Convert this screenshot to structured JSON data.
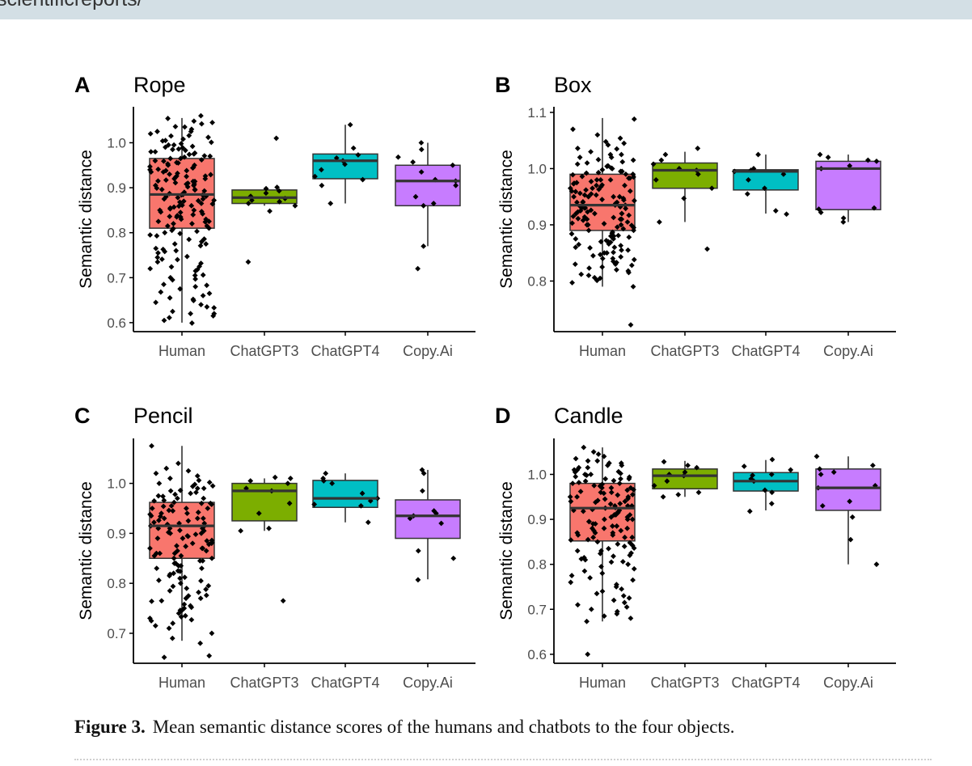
{
  "header": {
    "fragment": "scientificreports/"
  },
  "figure": {
    "caption_label": "Figure 3.",
    "caption_text": "Mean semantic distance scores of the humans and chatbots to the four objects."
  },
  "chart_data": [
    {
      "type": "boxplot",
      "panel_label": "A",
      "title": "Rope",
      "xlabel": "",
      "ylabel": "Semantic distance",
      "categories": [
        "Human",
        "ChatGPT3",
        "ChatGPT4",
        "Copy.Ai"
      ],
      "ylim": [
        0.58,
        1.08
      ],
      "yticks": [
        0.6,
        0.7,
        0.8,
        0.9,
        1.0
      ],
      "box_colors": [
        "#f8766d",
        "#7cae00",
        "#00bfc4",
        "#c77cff"
      ],
      "boxes": [
        {
          "whisker_low": 0.6,
          "q1": 0.81,
          "median": 0.885,
          "q3": 0.965,
          "whisker_high": 1.055,
          "points": [
            0.599,
            0.611,
            0.62,
            0.633,
            0.649,
            0.652,
            0.668,
            0.683,
            0.697,
            0.706,
            0.718,
            0.724,
            0.732,
            0.741,
            0.747,
            0.758,
            0.763,
            0.771,
            0.775,
            0.786,
            0.793,
            0.798,
            0.803,
            0.809,
            0.815,
            0.82,
            0.825,
            0.83,
            0.835,
            0.838,
            0.842,
            0.846,
            0.85,
            0.853,
            0.857,
            0.861,
            0.864,
            0.868,
            0.871,
            0.875,
            0.878,
            0.881,
            0.884,
            0.887,
            0.89,
            0.893,
            0.896,
            0.899,
            0.902,
            0.905,
            0.908,
            0.911,
            0.914,
            0.917,
            0.92,
            0.923,
            0.926,
            0.929,
            0.932,
            0.935,
            0.938,
            0.941,
            0.944,
            0.947,
            0.95,
            0.953,
            0.956,
            0.959,
            0.962,
            0.965,
            0.968,
            0.971,
            0.974,
            0.977,
            0.98,
            0.983,
            0.986,
            0.989,
            0.992,
            0.995,
            0.998,
            1.001,
            1.004,
            1.008,
            1.012,
            1.016,
            1.02,
            1.025,
            1.03,
            1.036,
            1.042,
            1.048,
            1.054,
            1.06,
            0.872,
            0.884,
            0.896,
            0.908,
            0.914,
            0.926,
            0.938,
            0.95,
            0.96,
            0.97,
            0.98,
            0.99,
            0.859,
            0.847,
            0.836,
            0.824,
            0.8,
            0.78,
            0.76,
            0.74,
            0.72,
            0.7,
            0.68,
            0.66,
            0.64,
            0.62,
            0.91,
            0.92,
            0.93,
            0.94,
            0.88,
            0.87,
            0.86,
            0.85,
            0.84,
            0.83,
            0.82,
            0.81,
            0.905,
            0.915,
            0.925,
            0.935,
            0.945,
            0.955,
            0.965,
            0.975,
            0.985,
            0.995,
            1.005,
            1.015,
            1.025,
            1.035,
            1.045,
            0.895,
            0.885,
            0.875,
            0.865,
            0.855,
            0.845,
            0.835,
            0.825,
            0.815,
            0.805,
            0.795,
            0.785,
            0.775,
            0.765,
            0.755,
            0.745,
            0.735,
            0.725,
            0.715,
            0.705,
            0.695,
            0.685,
            0.675,
            0.665,
            0.655,
            0.645,
            0.635,
            0.625,
            0.615,
            0.605
          ]
        },
        {
          "whisker_low": 0.86,
          "q1": 0.865,
          "median": 0.878,
          "q3": 0.895,
          "whisker_high": 0.9,
          "points": [
            0.735,
            0.848,
            0.86,
            0.865,
            0.869,
            0.872,
            0.876,
            0.881,
            0.888,
            0.893,
            0.898,
            0.901,
            1.01
          ]
        },
        {
          "whisker_low": 0.865,
          "q1": 0.92,
          "median": 0.96,
          "q3": 0.975,
          "whisker_high": 1.04,
          "points": [
            0.865,
            0.905,
            0.918,
            0.925,
            0.94,
            0.952,
            0.96,
            0.966,
            0.973,
            0.988,
            1.04
          ]
        },
        {
          "whisker_low": 0.77,
          "q1": 0.86,
          "median": 0.915,
          "q3": 0.95,
          "whisker_high": 1.0,
          "points": [
            0.72,
            0.77,
            0.86,
            0.865,
            0.88,
            0.905,
            0.915,
            0.918,
            0.935,
            0.95,
            0.957,
            0.968,
            0.985,
            1.0
          ]
        }
      ]
    },
    {
      "type": "boxplot",
      "panel_label": "B",
      "title": "Box",
      "xlabel": "",
      "ylabel": "Semantic distance",
      "categories": [
        "Human",
        "ChatGPT3",
        "ChatGPT4",
        "Copy.Ai"
      ],
      "ylim": [
        0.71,
        1.11
      ],
      "yticks": [
        0.8,
        0.9,
        1.0,
        1.1
      ],
      "box_colors": [
        "#f8766d",
        "#7cae00",
        "#00bfc4",
        "#c77cff"
      ],
      "boxes": [
        {
          "whisker_low": 0.79,
          "q1": 0.89,
          "median": 0.935,
          "q3": 0.99,
          "whisker_high": 1.09,
          "points": [
            0.722,
            0.79,
            0.797,
            0.801,
            0.806,
            0.812,
            0.818,
            0.823,
            0.828,
            0.833,
            0.838,
            0.843,
            0.847,
            0.851,
            0.855,
            0.859,
            0.863,
            0.866,
            0.869,
            0.872,
            0.875,
            0.878,
            0.881,
            0.884,
            0.887,
            0.89,
            0.893,
            0.896,
            0.899,
            0.902,
            0.905,
            0.908,
            0.911,
            0.914,
            0.917,
            0.92,
            0.923,
            0.926,
            0.929,
            0.932,
            0.935,
            0.938,
            0.941,
            0.944,
            0.947,
            0.95,
            0.953,
            0.956,
            0.959,
            0.962,
            0.965,
            0.968,
            0.971,
            0.974,
            0.977,
            0.98,
            0.983,
            0.986,
            0.989,
            0.992,
            0.995,
            0.998,
            1.001,
            1.004,
            1.008,
            1.012,
            1.016,
            1.02,
            1.025,
            1.03,
            1.036,
            1.042,
            1.048,
            1.054,
            1.06,
            1.07,
            1.088,
            0.91,
            0.92,
            0.93,
            0.94,
            0.95,
            0.96,
            0.97,
            0.98,
            0.99,
            0.88,
            0.87,
            0.86,
            0.85,
            0.84,
            0.83,
            0.82,
            0.81,
            0.9,
            0.915,
            0.925,
            0.935,
            0.945,
            0.955,
            0.965,
            0.975,
            0.985,
            0.995,
            1.005,
            1.015,
            1.025,
            1.035,
            1.045,
            0.895,
            0.885,
            0.875,
            0.865,
            0.855,
            0.845,
            0.835,
            0.825,
            0.815,
            0.805,
            0.903,
            0.913,
            0.923,
            0.933,
            0.943,
            0.953,
            0.963,
            0.973,
            0.983,
            0.993,
            0.88,
            0.89,
            0.9,
            0.91,
            0.92,
            0.93,
            0.94,
            0.95,
            0.96,
            0.97,
            0.98,
            0.99,
            1.0,
            1.01,
            1.02,
            0.86,
            0.87,
            0.85,
            0.84,
            0.83,
            0.9,
            0.91,
            0.92,
            0.93,
            0.94,
            0.95
          ]
        },
        {
          "whisker_low": 0.905,
          "q1": 0.965,
          "median": 0.997,
          "q3": 1.01,
          "whisker_high": 1.03,
          "points": [
            0.857,
            0.905,
            0.947,
            0.965,
            0.98,
            0.99,
            0.997,
            1.0,
            1.008,
            1.015,
            1.025,
            1.036
          ]
        },
        {
          "whisker_low": 0.92,
          "q1": 0.962,
          "median": 0.995,
          "q3": 0.998,
          "whisker_high": 1.025,
          "points": [
            0.919,
            0.925,
            0.955,
            0.965,
            0.98,
            0.99,
            0.995,
            0.997,
            1.0,
            1.025
          ]
        },
        {
          "whisker_low": 0.905,
          "q1": 0.927,
          "median": 1.0,
          "q3": 1.013,
          "whisker_high": 1.025,
          "points": [
            0.905,
            0.912,
            0.922,
            0.928,
            0.93,
            1.0,
            1.005,
            1.013,
            1.015,
            1.02,
            1.025
          ]
        }
      ]
    },
    {
      "type": "boxplot",
      "panel_label": "C",
      "title": "Pencil",
      "xlabel": "",
      "ylabel": "Semantic distance",
      "categories": [
        "Human",
        "ChatGPT3",
        "ChatGPT4",
        "Copy.Ai"
      ],
      "ylim": [
        0.64,
        1.09
      ],
      "yticks": [
        0.7,
        0.8,
        0.9,
        1.0
      ],
      "box_colors": [
        "#f8766d",
        "#7cae00",
        "#00bfc4",
        "#c77cff"
      ],
      "boxes": [
        {
          "whisker_low": 0.685,
          "q1": 0.85,
          "median": 0.915,
          "q3": 0.962,
          "whisker_high": 1.075,
          "points": [
            0.652,
            0.655,
            0.68,
            0.69,
            0.7,
            0.71,
            0.715,
            0.72,
            0.727,
            0.733,
            0.74,
            0.746,
            0.752,
            0.758,
            0.764,
            0.77,
            0.776,
            0.782,
            0.788,
            0.794,
            0.8,
            0.806,
            0.812,
            0.818,
            0.824,
            0.83,
            0.835,
            0.84,
            0.845,
            0.85,
            0.855,
            0.86,
            0.865,
            0.87,
            0.874,
            0.878,
            0.882,
            0.886,
            0.89,
            0.894,
            0.898,
            0.902,
            0.906,
            0.91,
            0.914,
            0.918,
            0.922,
            0.926,
            0.93,
            0.934,
            0.938,
            0.942,
            0.946,
            0.95,
            0.954,
            0.958,
            0.962,
            0.966,
            0.97,
            0.974,
            0.978,
            0.982,
            0.986,
            0.99,
            0.994,
            0.998,
            1.002,
            1.006,
            1.01,
            1.015,
            1.02,
            1.025,
            1.03,
            1.04,
            1.075,
            0.88,
            0.89,
            0.9,
            0.91,
            0.92,
            0.93,
            0.94,
            0.95,
            0.96,
            0.86,
            0.87,
            0.85,
            0.84,
            0.83,
            0.82,
            0.81,
            0.79,
            0.77,
            0.75,
            0.73,
            0.905,
            0.915,
            0.925,
            0.935,
            0.945,
            0.955,
            0.965,
            0.975,
            0.985,
            0.995,
            0.895,
            0.885,
            0.875,
            0.865,
            0.855,
            0.845,
            0.835,
            0.825,
            0.815,
            0.805,
            0.795,
            0.785,
            0.775,
            0.765,
            0.755,
            0.745,
            0.735,
            0.725,
            0.9,
            0.91,
            0.92,
            0.93,
            0.94,
            0.95,
            0.96,
            0.97,
            0.98,
            0.99,
            1.0,
            0.87,
            0.86,
            0.88
          ]
        },
        {
          "whisker_low": 0.905,
          "q1": 0.925,
          "median": 0.985,
          "q3": 1.0,
          "whisker_high": 1.01,
          "points": [
            0.765,
            0.905,
            0.91,
            0.94,
            0.96,
            0.985,
            0.99,
            1.0,
            1.005,
            1.01,
            1.012
          ]
        },
        {
          "whisker_low": 0.922,
          "q1": 0.952,
          "median": 0.97,
          "q3": 1.006,
          "whisker_high": 1.02,
          "points": [
            0.922,
            0.955,
            0.958,
            0.965,
            0.97,
            0.98,
            1.0,
            1.005,
            1.01,
            1.02
          ]
        },
        {
          "whisker_low": 0.808,
          "q1": 0.89,
          "median": 0.935,
          "q3": 0.967,
          "whisker_high": 1.027,
          "points": [
            0.807,
            0.85,
            0.865,
            0.92,
            0.93,
            0.935,
            0.94,
            0.945,
            0.985,
            1.02,
            1.027
          ]
        }
      ]
    },
    {
      "type": "boxplot",
      "panel_label": "D",
      "title": "Candle",
      "xlabel": "",
      "ylabel": "Semantic distance",
      "categories": [
        "Human",
        "ChatGPT3",
        "ChatGPT4",
        "Copy.Ai"
      ],
      "ylim": [
        0.58,
        1.08
      ],
      "yticks": [
        0.6,
        0.7,
        0.8,
        0.9,
        1.0
      ],
      "box_colors": [
        "#f8766d",
        "#7cae00",
        "#00bfc4",
        "#c77cff"
      ],
      "boxes": [
        {
          "whisker_low": 0.673,
          "q1": 0.852,
          "median": 0.925,
          "q3": 0.98,
          "whisker_high": 1.06,
          "points": [
            0.6,
            0.673,
            0.68,
            0.69,
            0.7,
            0.71,
            0.72,
            0.73,
            0.74,
            0.75,
            0.76,
            0.77,
            0.78,
            0.79,
            0.8,
            0.806,
            0.812,
            0.818,
            0.824,
            0.83,
            0.836,
            0.842,
            0.848,
            0.854,
            0.86,
            0.865,
            0.87,
            0.875,
            0.88,
            0.885,
            0.89,
            0.895,
            0.9,
            0.905,
            0.91,
            0.914,
            0.918,
            0.922,
            0.926,
            0.93,
            0.934,
            0.938,
            0.942,
            0.946,
            0.95,
            0.954,
            0.958,
            0.962,
            0.966,
            0.97,
            0.974,
            0.978,
            0.982,
            0.986,
            0.99,
            0.994,
            0.998,
            1.002,
            1.006,
            1.01,
            1.015,
            1.02,
            1.025,
            1.03,
            1.035,
            1.04,
            1.045,
            1.05,
            1.06,
            0.9,
            0.91,
            0.92,
            0.93,
            0.94,
            0.95,
            0.96,
            0.97,
            0.98,
            0.99,
            1.0,
            0.88,
            0.87,
            0.86,
            0.85,
            0.84,
            0.83,
            0.82,
            0.81,
            0.905,
            0.915,
            0.925,
            0.935,
            0.945,
            0.955,
            0.965,
            0.975,
            0.985,
            0.995,
            1.005,
            1.015,
            1.025,
            0.895,
            0.885,
            0.875,
            0.865,
            0.855,
            0.845,
            0.835,
            0.825,
            0.815,
            0.805,
            0.795,
            0.785,
            0.775,
            0.765,
            0.755,
            0.745,
            0.735,
            0.725,
            0.715,
            0.705,
            0.695,
            0.685,
            0.9,
            0.91,
            0.92,
            0.93,
            0.94,
            0.95,
            0.96,
            0.97,
            0.98,
            0.99,
            1.0,
            1.01,
            1.02,
            1.03,
            0.86,
            0.87,
            0.88,
            0.89
          ]
        },
        {
          "whisker_low": 0.95,
          "q1": 0.968,
          "median": 0.997,
          "q3": 1.012,
          "whisker_high": 1.03,
          "points": [
            0.95,
            0.955,
            0.96,
            0.975,
            0.985,
            0.997,
            1.0,
            1.005,
            1.015,
            1.02,
            1.028
          ]
        },
        {
          "whisker_low": 0.92,
          "q1": 0.963,
          "median": 0.985,
          "q3": 1.004,
          "whisker_high": 1.032,
          "points": [
            0.918,
            0.935,
            0.96,
            0.965,
            0.985,
            0.99,
            0.998,
            1.0,
            1.01,
            1.018,
            1.033
          ]
        },
        {
          "whisker_low": 0.8,
          "q1": 0.92,
          "median": 0.97,
          "q3": 1.012,
          "whisker_high": 1.04,
          "points": [
            0.8,
            0.855,
            0.905,
            0.93,
            0.94,
            0.97,
            0.975,
            1.0,
            1.005,
            1.012,
            1.02,
            1.04
          ]
        }
      ]
    }
  ]
}
